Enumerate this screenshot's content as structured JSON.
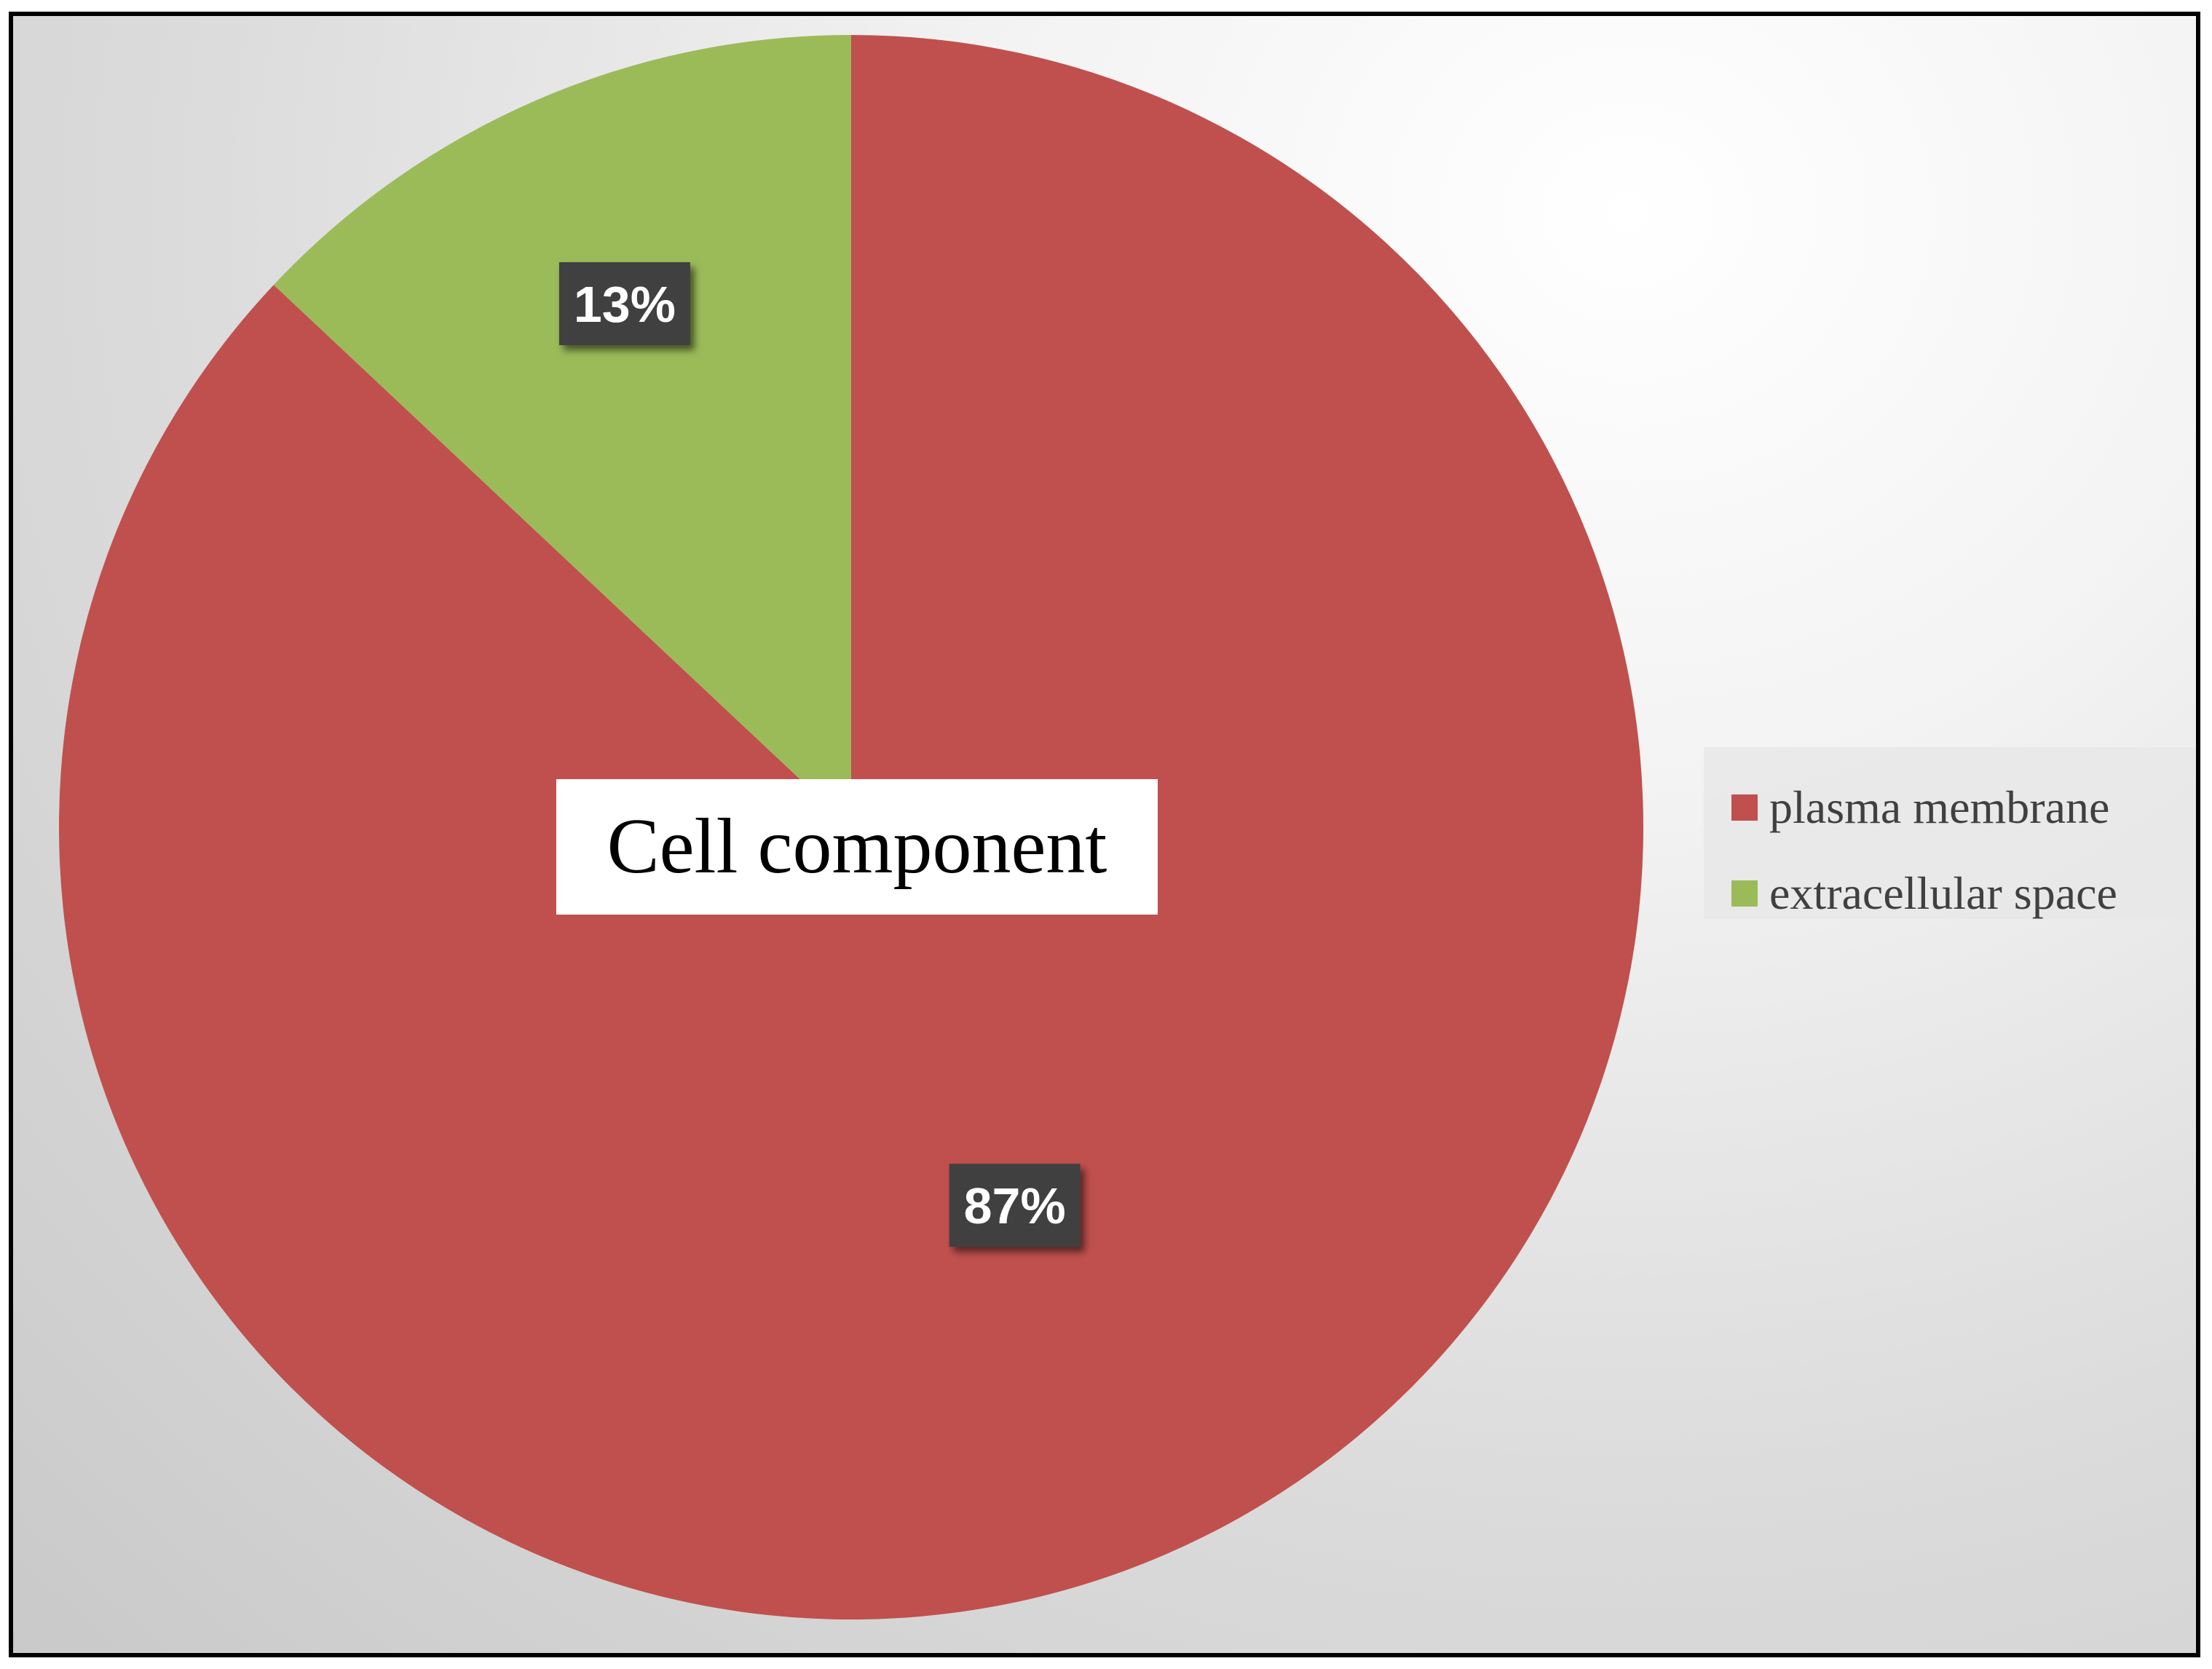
{
  "colors": {
    "plasma_membrane": "#c0504d",
    "extracellular_space": "#9bbb59",
    "label_box": "#404040"
  },
  "chart_data": {
    "type": "pie",
    "title": "Cell component",
    "categories": [
      "plasma membrane",
      "extracellular space"
    ],
    "values": [
      87,
      13
    ],
    "data_labels": [
      "87%",
      "13%"
    ],
    "legend_position": "right"
  },
  "legend": {
    "items": [
      {
        "label": "plasma membrane",
        "color": "#c0504d"
      },
      {
        "label": "extracellular space",
        "color": "#9bbb59"
      }
    ]
  }
}
